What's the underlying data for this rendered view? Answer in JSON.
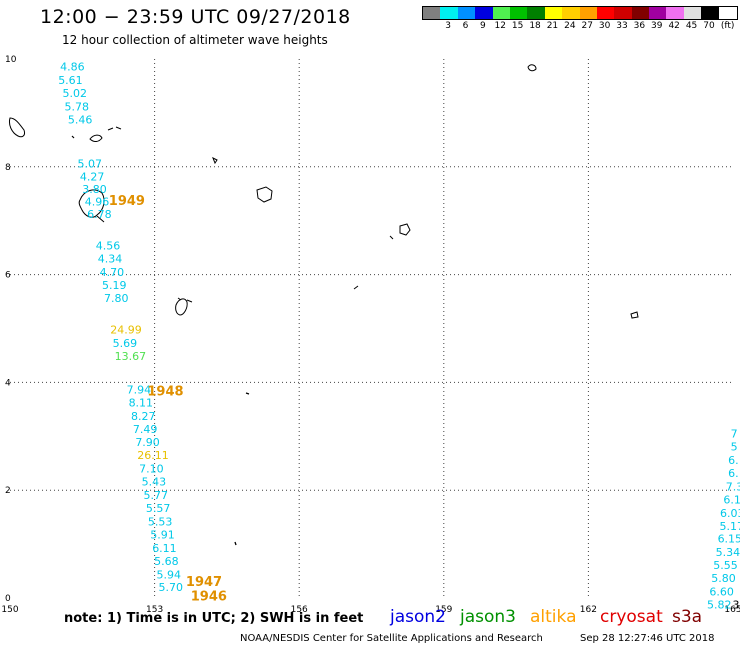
{
  "header": {
    "title": "12:00 − 23:59 UTC 09/27/2018",
    "subtitle": "12 hour collection of altimeter wave heights"
  },
  "legend": {
    "colors": [
      "#808080",
      "#00f0f0",
      "#0090ff",
      "#0000e0",
      "#50f050",
      "#00c000",
      "#008000",
      "#ffff00",
      "#ffd000",
      "#ffa000",
      "#ff0000",
      "#d00000",
      "#800000",
      "#a000a0",
      "#f070f0",
      "#e0e0e0",
      "#000000"
    ],
    "labels": [
      "",
      "3",
      "6",
      "9",
      "12",
      "15",
      "18",
      "21",
      "24",
      "27",
      "30",
      "33",
      "36",
      "39",
      "42",
      "45",
      "70",
      "(ft)"
    ]
  },
  "map": {
    "x_ticks": [
      "150",
      "153",
      "156",
      "159",
      "162",
      "165"
    ],
    "y_ticks": [
      "10",
      "8",
      "6",
      "4",
      "2",
      "0"
    ],
    "lon_range": [
      150,
      165
    ],
    "lat_range": [
      0,
      10
    ]
  },
  "wave_labels": [
    {
      "text": "4.86",
      "color": "#00c8e8",
      "lon": 151.04,
      "lat": 9.86
    },
    {
      "text": "5.61",
      "color": "#00c8e8",
      "lon": 151.0,
      "lat": 9.61
    },
    {
      "text": "5.02",
      "color": "#00c8e8",
      "lon": 151.09,
      "lat": 9.37
    },
    {
      "text": "5.78",
      "color": "#00c8e8",
      "lon": 151.13,
      "lat": 9.12
    },
    {
      "text": "5.46",
      "color": "#00c8e8",
      "lon": 151.2,
      "lat": 8.88
    },
    {
      "text": "5.07",
      "color": "#00c8e8",
      "lon": 151.4,
      "lat": 8.06
    },
    {
      "text": "4.27",
      "color": "#00c8e8",
      "lon": 151.45,
      "lat": 7.82
    },
    {
      "text": "3.80",
      "color": "#00c8e8",
      "lon": 151.5,
      "lat": 7.59
    },
    {
      "text": "4.96",
      "color": "#00c8e8",
      "lon": 151.55,
      "lat": 7.36
    },
    {
      "text": "6.78",
      "color": "#00c8e8",
      "lon": 151.6,
      "lat": 7.12
    },
    {
      "text": "4.56",
      "color": "#00c8e8",
      "lon": 151.78,
      "lat": 6.54
    },
    {
      "text": "4.34",
      "color": "#00c8e8",
      "lon": 151.82,
      "lat": 6.3
    },
    {
      "text": "4.70",
      "color": "#00c8e8",
      "lon": 151.86,
      "lat": 6.05
    },
    {
      "text": "5.19",
      "color": "#00c8e8",
      "lon": 151.91,
      "lat": 5.81
    },
    {
      "text": "7.80",
      "color": "#00c8e8",
      "lon": 151.95,
      "lat": 5.57
    },
    {
      "text": "24.99",
      "color": "#e8c000",
      "lon": 152.08,
      "lat": 4.98
    },
    {
      "text": "5.69",
      "color": "#00c8e8",
      "lon": 152.13,
      "lat": 4.73
    },
    {
      "text": "13.67",
      "color": "#50e050",
      "lon": 152.17,
      "lat": 4.49
    },
    {
      "text": "7.94",
      "color": "#00c8e8",
      "lon": 152.42,
      "lat": 3.87
    },
    {
      "text": "8.11",
      "color": "#00c8e8",
      "lon": 152.46,
      "lat": 3.63
    },
    {
      "text": "8.27",
      "color": "#00c8e8",
      "lon": 152.51,
      "lat": 3.38
    },
    {
      "text": "7.49",
      "color": "#00c8e8",
      "lon": 152.55,
      "lat": 3.14
    },
    {
      "text": "7.90",
      "color": "#00c8e8",
      "lon": 152.6,
      "lat": 2.89
    },
    {
      "text": "26.11",
      "color": "#e8c000",
      "lon": 152.64,
      "lat": 2.65
    },
    {
      "text": "7.10",
      "color": "#00c8e8",
      "lon": 152.68,
      "lat": 2.4
    },
    {
      "text": "5.43",
      "color": "#00c8e8",
      "lon": 152.73,
      "lat": 2.16
    },
    {
      "text": "5.77",
      "color": "#00c8e8",
      "lon": 152.77,
      "lat": 1.91
    },
    {
      "text": "5.57",
      "color": "#00c8e8",
      "lon": 152.82,
      "lat": 1.67
    },
    {
      "text": "5.53",
      "color": "#00c8e8",
      "lon": 152.86,
      "lat": 1.42
    },
    {
      "text": "5.91",
      "color": "#00c8e8",
      "lon": 152.91,
      "lat": 1.18
    },
    {
      "text": "6.11",
      "color": "#00c8e8",
      "lon": 152.95,
      "lat": 0.93
    },
    {
      "text": "5.68",
      "color": "#00c8e8",
      "lon": 152.99,
      "lat": 0.69
    },
    {
      "text": "5.94",
      "color": "#00c8e8",
      "lon": 153.04,
      "lat": 0.44
    },
    {
      "text": "5.70",
      "color": "#00c8e8",
      "lon": 153.08,
      "lat": 0.2
    },
    {
      "text": "7",
      "color": "#00c8e8",
      "lon": 164.95,
      "lat": 3.05
    },
    {
      "text": "5",
      "color": "#00c8e8",
      "lon": 164.95,
      "lat": 2.81
    },
    {
      "text": "6.",
      "color": "#00c8e8",
      "lon": 164.9,
      "lat": 2.56
    },
    {
      "text": "6.",
      "color": "#00c8e8",
      "lon": 164.9,
      "lat": 2.32
    },
    {
      "text": "7.3",
      "color": "#00c8e8",
      "lon": 164.85,
      "lat": 2.07
    },
    {
      "text": "6.1",
      "color": "#00c8e8",
      "lon": 164.8,
      "lat": 1.83
    },
    {
      "text": "6.03",
      "color": "#00c8e8",
      "lon": 164.73,
      "lat": 1.58
    },
    {
      "text": "5.17",
      "color": "#00c8e8",
      "lon": 164.72,
      "lat": 1.34
    },
    {
      "text": "6.15",
      "color": "#00c8e8",
      "lon": 164.68,
      "lat": 1.1
    },
    {
      "text": "5.34",
      "color": "#00c8e8",
      "lon": 164.64,
      "lat": 0.85
    },
    {
      "text": "5.55",
      "color": "#00c8e8",
      "lon": 164.59,
      "lat": 0.61
    },
    {
      "text": "5.80",
      "color": "#00c8e8",
      "lon": 164.55,
      "lat": 0.37
    },
    {
      "text": "6.60",
      "color": "#00c8e8",
      "lon": 164.51,
      "lat": 0.12
    },
    {
      "text": "5.82",
      "color": "#00c8e8",
      "lon": 164.46,
      "lat": -0.12
    },
    {
      "text": "3",
      "color": "#000000",
      "lon": 164.99,
      "lat": -0.12
    }
  ],
  "time_labels": [
    {
      "text": "1949",
      "lon": 152.05,
      "lat": 7.38
    },
    {
      "text": "1948",
      "lon": 152.85,
      "lat": 3.85
    },
    {
      "text": "1947",
      "lon": 153.65,
      "lat": 0.32
    },
    {
      "text": "1946",
      "lon": 153.75,
      "lat": 0.05
    }
  ],
  "footer": {
    "note": "note:  1) Time is in UTC;  2) SWH is in feet",
    "satellites": [
      {
        "name": "jason2",
        "color": "#0000e0"
      },
      {
        "name": "jason3",
        "color": "#009000"
      },
      {
        "name": "altika",
        "color": "#ffa000"
      },
      {
        "name": "cryosat",
        "color": "#e00000"
      },
      {
        "name": "s3a",
        "color": "#800000"
      }
    ],
    "credit": "NOAA/NESDIS Center for Satellite Applications and Research",
    "timestamp": "Sep 28 12:27:46 UTC 2018"
  },
  "colors": {
    "time_label": "#e09000"
  }
}
